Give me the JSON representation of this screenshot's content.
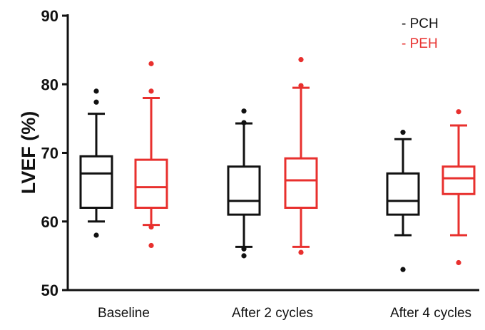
{
  "chart_data": {
    "type": "box",
    "ylabel": "LVEF (%)",
    "ylim": [
      50,
      90
    ],
    "yticks": [
      "50",
      "60",
      "70",
      "80",
      "90"
    ],
    "categories": [
      "Baseline",
      "After 2 cycles",
      "After 4 cycles"
    ],
    "legend_position": "top-right",
    "series": [
      {
        "name": "PCH",
        "legend_label": "- PCH",
        "color": "#111111",
        "boxes": [
          {
            "whisker_low": 60,
            "q1": 62,
            "median": 67,
            "q3": 69.5,
            "whisker_high": 75.7,
            "outliers": [
              58,
              77.4,
              79
            ]
          },
          {
            "whisker_low": 56.3,
            "q1": 61,
            "median": 63,
            "q3": 68,
            "whisker_high": 74.3,
            "outliers": [
              55,
              56,
              74.4,
              76.1
            ]
          },
          {
            "whisker_low": 58,
            "q1": 61,
            "median": 63,
            "q3": 67,
            "whisker_high": 72,
            "outliers": [
              53,
              73
            ]
          }
        ]
      },
      {
        "name": "PEH",
        "legend_label": "- PEH",
        "color": "#e8302e",
        "boxes": [
          {
            "whisker_low": 59.5,
            "q1": 62,
            "median": 65,
            "q3": 69,
            "whisker_high": 78,
            "outliers": [
              56.5,
              59.2,
              79,
              83
            ]
          },
          {
            "whisker_low": 56.3,
            "q1": 62,
            "median": 66,
            "q3": 69.2,
            "whisker_high": 79.5,
            "outliers": [
              55.5,
              79.8,
              83.6
            ]
          },
          {
            "whisker_low": 58,
            "q1": 64,
            "median": 66.3,
            "q3": 68,
            "whisker_high": 74,
            "outliers": [
              54,
              76
            ]
          }
        ]
      }
    ]
  }
}
